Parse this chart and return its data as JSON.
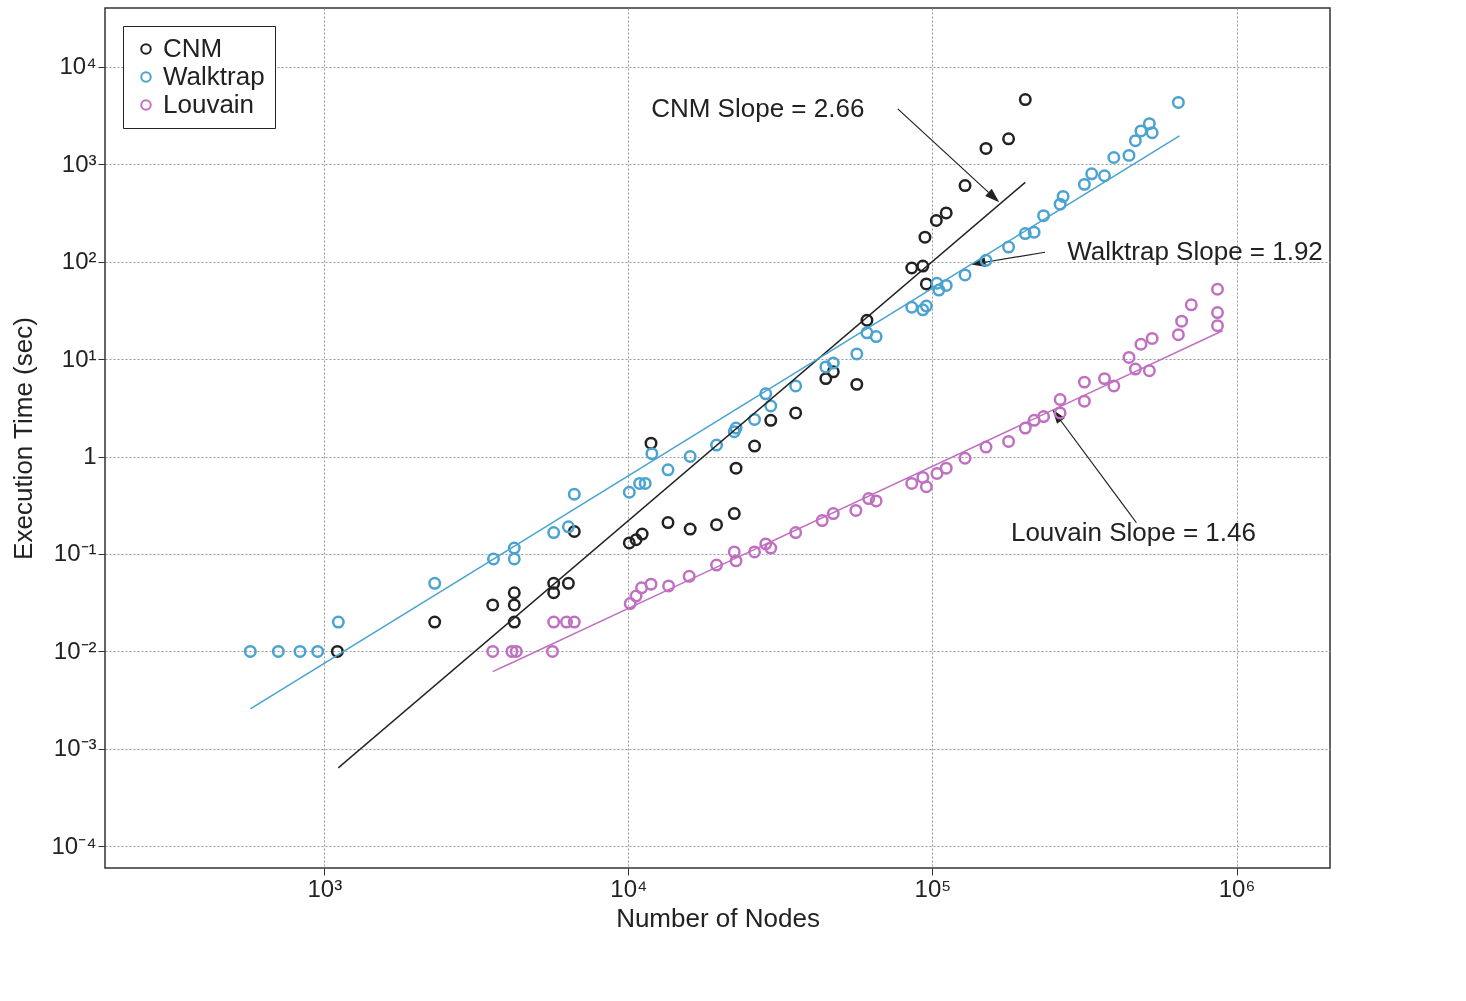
{
  "chart_data": {
    "type": "scatter",
    "xlabel": "Number of Nodes",
    "ylabel": "Execution Time (sec)",
    "log": "xy",
    "grid": true,
    "legend": "top left",
    "marker": "circle",
    "xlim": [
      190,
      2030000
    ],
    "ylim": [
      6e-05,
      40000
    ],
    "xticks": [
      {
        "value": 1000,
        "label": "10³"
      },
      {
        "value": 10000,
        "label": "10⁴"
      },
      {
        "value": 100000,
        "label": "10⁵"
      },
      {
        "value": 1000000,
        "label": "10⁶"
      }
    ],
    "yticks": [
      {
        "value": 0.0001,
        "label": "10⁻⁴"
      },
      {
        "value": 0.001,
        "label": "10⁻³"
      },
      {
        "value": 0.01,
        "label": "10⁻²"
      },
      {
        "value": 0.1,
        "label": "10⁻¹"
      },
      1,
      {
        "value": 10,
        "label": "10¹"
      },
      {
        "value": 100,
        "label": "10²"
      },
      {
        "value": 1000,
        "label": "10³"
      },
      {
        "value": 10000,
        "label": "10⁴"
      }
    ],
    "series": [
      {
        "name": "CNM",
        "color": "#222222",
        "x": [
          1104,
          2307,
          3580,
          4215,
          4215,
          4215,
          5680,
          5680,
          6350,
          6640,
          10070,
          10600,
          11100,
          11870,
          13500,
          15970,
          19500,
          22300,
          22600,
          26000,
          29400,
          35500,
          44600,
          47200,
          56400,
          60900,
          85500,
          93000,
          94500,
          95500,
          103000,
          111000,
          128000,
          150000,
          178000,
          202000
        ],
        "values": [
          0.01,
          0.02,
          0.03,
          0.04,
          0.03,
          0.02,
          0.05,
          0.04,
          0.05,
          0.17,
          0.13,
          0.14,
          0.16,
          1.37,
          0.21,
          0.18,
          0.2,
          0.26,
          0.76,
          1.28,
          2.35,
          2.8,
          6.3,
          7.4,
          5.5,
          25,
          86,
          90,
          178,
          59,
          264,
          316,
          603,
          1450,
          1820,
          4600
        ]
      },
      {
        "name": "Walktrap",
        "color": "#4aa3d0",
        "x": [
          571,
          706,
          832,
          951,
          1112,
          2307,
          3600,
          4215,
          4215,
          5680,
          6350,
          6640,
          10070,
          10890,
          11360,
          11950,
          13500,
          15970,
          19500,
          22300,
          22600,
          26000,
          28300,
          29400,
          35500,
          44600,
          47200,
          56400,
          60900,
          65300,
          85500,
          93000,
          95500,
          103500,
          105000,
          111000,
          128000,
          150000,
          178000,
          202000,
          216000,
          232000,
          263000,
          269000,
          316000,
          334000,
          368000,
          395000,
          443000,
          465000,
          485000,
          517000,
          528000,
          644000
        ],
        "values": [
          0.01,
          0.01,
          0.01,
          0.01,
          0.02,
          0.05,
          0.089,
          0.115,
          0.089,
          0.166,
          0.19,
          0.41,
          0.43,
          0.53,
          0.53,
          1.07,
          0.73,
          1,
          1.31,
          1.8,
          1.96,
          2.4,
          4.4,
          3.3,
          5.3,
          8.3,
          9.1,
          11.3,
          18.6,
          17,
          34,
          32,
          35,
          60,
          51,
          57,
          73,
          103,
          141,
          194,
          200,
          296,
          388,
          466,
          620,
          795,
          760,
          1170,
          1230,
          1740,
          2190,
          2600,
          2100,
          4300
        ]
      },
      {
        "name": "Louvain",
        "color": "#c070c0",
        "x": [
          3580,
          4140,
          4280,
          5630,
          5680,
          6260,
          6640,
          10140,
          10600,
          11050,
          11870,
          13560,
          15850,
          19500,
          22300,
          22600,
          26000,
          28300,
          29400,
          35500,
          43400,
          47200,
          56000,
          61700,
          65300,
          85500,
          93000,
          95500,
          103500,
          111000,
          128000,
          150000,
          178000,
          202000,
          216000,
          232000,
          263000,
          263000,
          316000,
          316000,
          368000,
          395000,
          443000,
          465000,
          485000,
          517000,
          528000,
          644000,
          660000,
          710000,
          866000,
          866000,
          866000
        ],
        "values": [
          0.01,
          0.01,
          0.01,
          0.01,
          0.02,
          0.02,
          0.02,
          0.031,
          0.037,
          0.045,
          0.049,
          0.047,
          0.059,
          0.077,
          0.105,
          0.085,
          0.105,
          0.127,
          0.115,
          0.166,
          0.22,
          0.26,
          0.28,
          0.37,
          0.35,
          0.53,
          0.61,
          0.49,
          0.67,
          0.76,
          0.96,
          1.25,
          1.43,
          1.96,
          2.35,
          2.57,
          3.85,
          2.8,
          5.8,
          3.7,
          6.3,
          5.3,
          10.4,
          7.9,
          14.2,
          7.6,
          16.3,
          17.8,
          24.5,
          36,
          22,
          52,
          30
        ]
      },
      {
        "type": "line",
        "marker": "none",
        "color": "#222222",
        "x": [
          1112,
          202000
        ],
        "values": [
          0.00064,
          650
        ]
      },
      {
        "type": "line",
        "marker": "none",
        "color": "#4aa3d0",
        "x": [
          571,
          649000
        ],
        "values": [
          0.00257,
          1950
        ]
      },
      {
        "type": "line",
        "marker": "none",
        "color": "#c070c0",
        "x": [
          3580,
          900000
        ],
        "values": [
          0.0062,
          19.5
        ]
      }
    ],
    "annotations": [
      {
        "text": "CNM Slope = 2.66",
        "x": 164000,
        "y": 420
      },
      {
        "text": "Walktrap Slope = 1.92",
        "x": 136000,
        "y": 94
      },
      {
        "text": "Louvain Slope = 1.46",
        "x": 250000,
        "y": 2.95
      }
    ]
  }
}
